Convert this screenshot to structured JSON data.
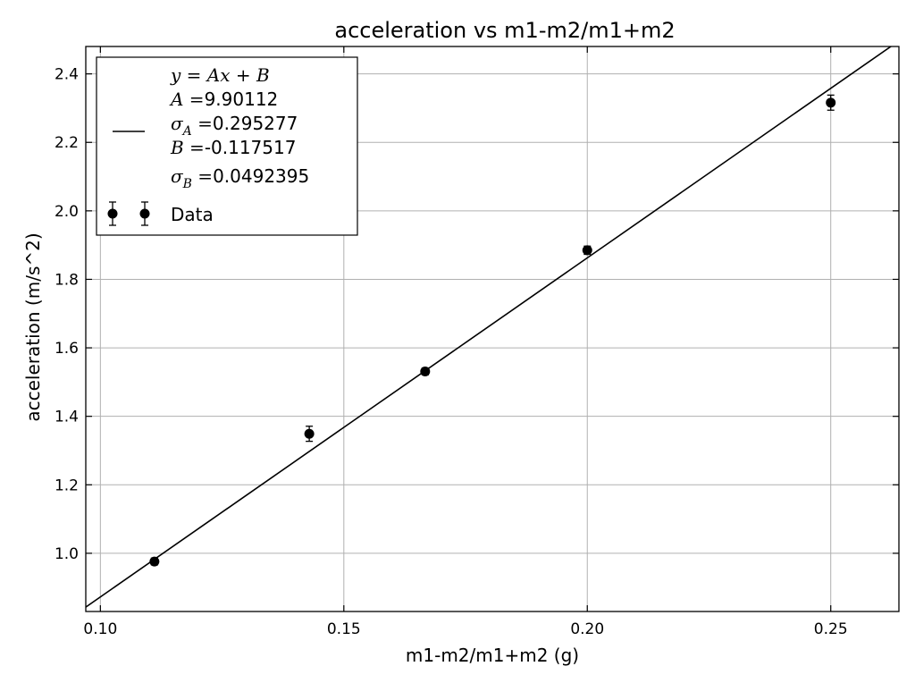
{
  "chart_data": {
    "type": "scatter",
    "title": "acceleration vs m1-m2/m1+m2",
    "xlabel": "m1-m2/m1+m2 (g)",
    "ylabel": "acceleration (m/s^2)",
    "xlim": [
      0.097,
      0.264
    ],
    "ylim": [
      0.83,
      2.48
    ],
    "xticks": [
      0.1,
      0.15,
      0.2,
      0.25
    ],
    "xtick_labels": [
      "0.10",
      "0.15",
      "0.20",
      "0.25"
    ],
    "yticks": [
      1.0,
      1.2,
      1.4,
      1.6,
      1.8,
      2.0,
      2.2,
      2.4
    ],
    "ytick_labels": [
      "1.0",
      "1.2",
      "1.4",
      "1.6",
      "1.8",
      "2.0",
      "2.2",
      "2.4"
    ],
    "grid": true,
    "legend_position": "top-left",
    "series": [
      {
        "name": "Data",
        "kind": "errorbar",
        "marker": "circle",
        "color": "#000000",
        "x": [
          0.1111,
          0.1429,
          0.1667,
          0.2,
          0.25
        ],
        "y": [
          0.976,
          1.349,
          1.531,
          1.885,
          2.316
        ],
        "yerr": [
          0.01,
          0.022,
          0.01,
          0.012,
          0.022
        ]
      }
    ],
    "fit": {
      "equation": "y = Ax + B",
      "A": 9.90112,
      "sigma_A": 0.295277,
      "B": -0.117517,
      "sigma_B": 0.0492395,
      "color": "#000000"
    },
    "legend": {
      "fit_lines": [
        {
          "math": "y = Ax + B",
          "value": ""
        },
        {
          "math": "A =",
          "value": "9.90112"
        },
        {
          "math": "σ",
          "sub": "A",
          "eq": " =",
          "value": "0.295277"
        },
        {
          "math": "B =",
          "value": "-0.117517"
        },
        {
          "math": "σ",
          "sub": "B",
          "eq": " =",
          "value": "0.0492395"
        }
      ],
      "data_label": "Data"
    }
  }
}
